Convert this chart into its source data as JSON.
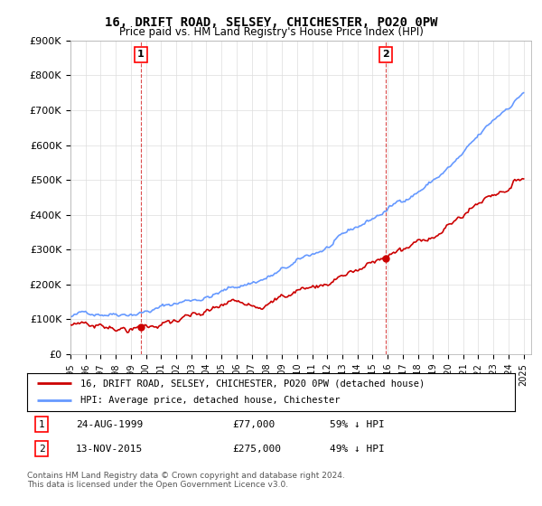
{
  "title": "16, DRIFT ROAD, SELSEY, CHICHESTER, PO20 0PW",
  "subtitle": "Price paid vs. HM Land Registry's House Price Index (HPI)",
  "ylim": [
    0,
    900000
  ],
  "yticks": [
    0,
    100000,
    200000,
    300000,
    400000,
    500000,
    600000,
    700000,
    800000,
    900000
  ],
  "ytick_labels": [
    "£0",
    "£100K",
    "£200K",
    "£300K",
    "£400K",
    "£500K",
    "£600K",
    "£700K",
    "£800K",
    "£900K"
  ],
  "hpi_color": "#6699ff",
  "price_color": "#cc0000",
  "sale1_price": 77000,
  "sale1_year": 1999.65,
  "sale2_price": 275000,
  "sale2_year": 2015.87,
  "legend_label1": "16, DRIFT ROAD, SELSEY, CHICHESTER, PO20 0PW (detached house)",
  "legend_label2": "HPI: Average price, detached house, Chichester",
  "footnote": "Contains HM Land Registry data © Crown copyright and database right 2024.\nThis data is licensed under the Open Government Licence v3.0.",
  "background_color": "#ffffff",
  "grid_color": "#dddddd"
}
